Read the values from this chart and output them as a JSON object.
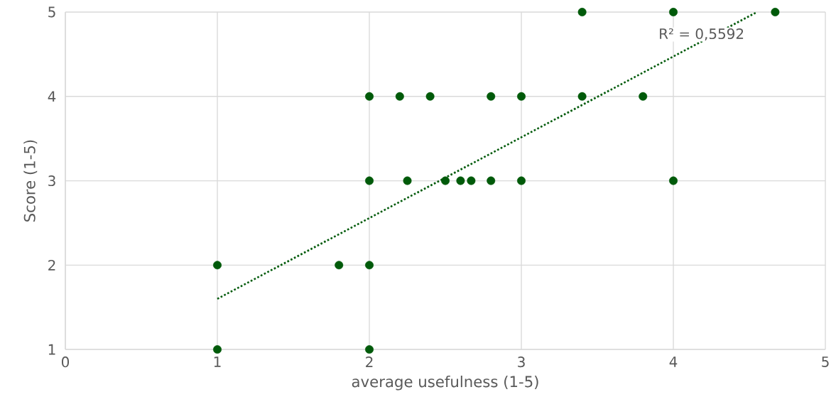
{
  "chart_data": {
    "type": "scatter",
    "xlabel": "average usefulness (1-5)",
    "ylabel": "Score (1-5)",
    "xlim": [
      0,
      5
    ],
    "ylim": [
      1,
      5
    ],
    "xticks": [
      0,
      1,
      2,
      3,
      4,
      5
    ],
    "yticks": [
      1,
      2,
      3,
      4,
      5
    ],
    "grid": true,
    "annotations": [
      "R² = 0,5592"
    ],
    "series": [
      {
        "marker": "circle",
        "color": "#005a0a",
        "x": [
          3.4,
          4.0,
          4.67,
          2.0,
          2.2,
          2.4,
          2.8,
          3.0,
          3.4,
          3.8,
          2.0,
          2.25,
          2.5,
          2.6,
          2.67,
          2.8,
          3.0,
          4.0,
          1.0,
          1.8,
          2.0,
          1.0,
          2.0
        ],
        "values": [
          5,
          5,
          5,
          4,
          4,
          4,
          4,
          4,
          4,
          4,
          3,
          3,
          3,
          3,
          3,
          3,
          3,
          3,
          2,
          2,
          2,
          1,
          1
        ]
      },
      {
        "type": "line",
        "line_style": "dotted",
        "marker": "none",
        "color": "#005a0a",
        "x": [
          1,
          4.55
        ],
        "values": [
          1.6,
          5
        ]
      }
    ]
  }
}
